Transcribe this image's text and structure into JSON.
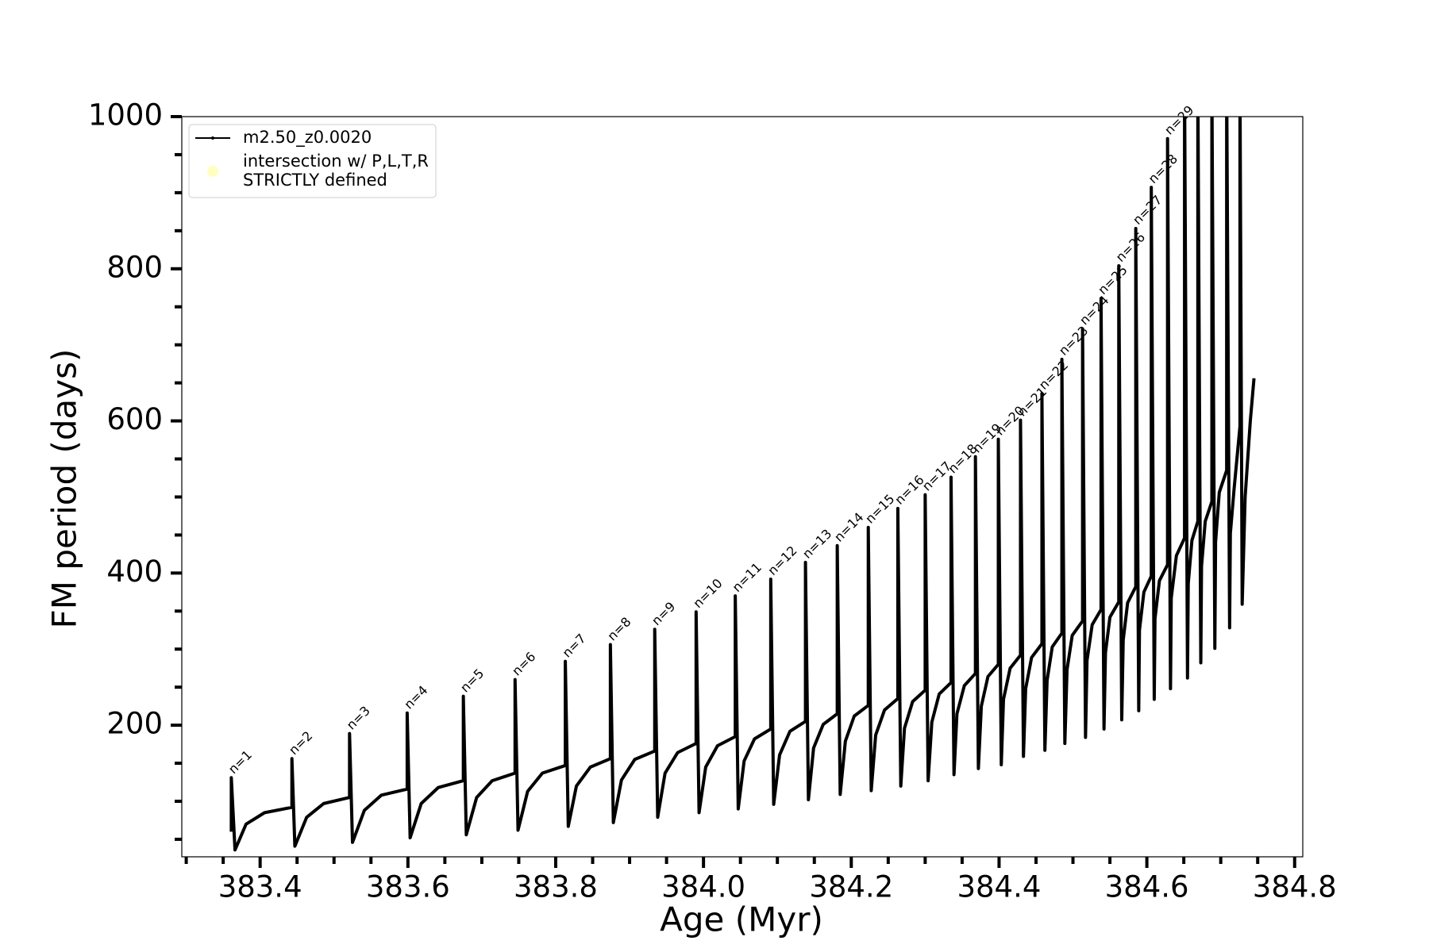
{
  "chart_data": {
    "type": "line",
    "xlabel": "Age (Myr)",
    "ylabel": "FM period (days)",
    "xlim": [
      383.294,
      384.811
    ],
    "ylim": [
      27,
      1000
    ],
    "xticks": [
      383.4,
      383.6,
      383.8,
      {
        "value": 384,
        "label": "384.0"
      },
      384.2,
      384.4,
      384.6,
      384.8
    ],
    "yticks": [
      200,
      400,
      600,
      800,
      1000
    ],
    "xminorticks": [
      383.3,
      383.35,
      383.45,
      383.5,
      383.55,
      383.65,
      383.7,
      383.75,
      383.85,
      383.9,
      383.95,
      384.05,
      384.1,
      384.15,
      384.25,
      384.3,
      384.35,
      384.45,
      384.5,
      384.55,
      384.65,
      384.7,
      384.75
    ],
    "yminorticks": [
      50,
      100,
      150,
      250,
      300,
      350,
      450,
      500,
      550,
      650,
      700,
      750,
      850,
      900,
      950
    ],
    "grid": false,
    "legend": "upper left",
    "series": [
      {
        "name": "m2.50_z0.0020",
        "color": "#000000",
        "x": [
          383.361,
          383.361,
          383.366,
          383.381,
          383.406,
          383.443,
          383.443,
          383.447,
          383.463,
          383.486,
          383.521,
          383.521,
          383.525,
          383.541,
          383.564,
          383.599,
          383.599,
          383.603,
          383.618,
          383.641,
          383.675,
          383.675,
          383.679,
          383.693,
          383.714,
          383.745,
          383.745,
          383.749,
          383.762,
          383.782,
          383.813,
          383.813,
          383.817,
          383.828,
          383.847,
          383.874,
          383.874,
          383.878,
          383.889,
          383.907,
          383.934,
          383.934,
          383.938,
          383.948,
          383.965,
          383.99,
          383.99,
          383.994,
          384.003,
          384.019,
          384.043,
          384.043,
          384.047,
          384.055,
          384.069,
          384.091,
          384.091,
          384.095,
          384.103,
          384.117,
          384.138,
          384.138,
          384.142,
          384.149,
          384.162,
          384.181,
          384.181,
          384.185,
          384.192,
          384.204,
          384.223,
          384.223,
          384.227,
          384.233,
          384.245,
          384.263,
          384.263,
          384.267,
          384.272,
          384.283,
          384.3,
          384.3,
          384.304,
          384.309,
          384.319,
          384.335,
          384.335,
          384.339,
          384.343,
          384.353,
          384.368,
          384.368,
          384.372,
          384.376,
          384.385,
          384.399,
          384.399,
          384.403,
          384.406,
          384.415,
          384.429,
          384.429,
          384.433,
          384.436,
          384.444,
          384.458,
          384.458,
          384.462,
          384.465,
          384.472,
          384.485,
          384.485,
          384.489,
          384.492,
          384.499,
          384.513,
          384.513,
          384.517,
          384.519,
          384.526,
          384.538,
          384.538,
          384.542,
          384.544,
          384.55,
          384.562,
          384.562,
          384.566,
          384.568,
          384.574,
          384.585,
          384.585,
          384.589,
          384.59,
          384.596,
          384.606,
          384.606,
          384.61,
          384.611,
          384.617,
          384.628,
          384.628,
          384.632,
          384.633,
          384.64,
          384.651,
          384.651,
          384.655,
          384.656,
          384.661,
          384.669,
          384.669,
          384.673,
          384.674,
          384.679,
          384.688,
          384.688,
          384.692,
          384.693,
          384.698,
          384.708,
          384.708,
          384.712,
          384.713,
          384.718,
          384.726,
          384.726,
          384.729,
          384.733,
          384.74,
          384.745
        ],
        "values": [
          60,
          131,
          36,
          70,
          85,
          92,
          156,
          41,
          79,
          97,
          105,
          189,
          46,
          88,
          108,
          116,
          216,
          52,
          97,
          118,
          127,
          238,
          56,
          105,
          127,
          137,
          260,
          62,
          113,
          137,
          147,
          284,
          67,
          120,
          145,
          156,
          306,
          72,
          128,
          155,
          166,
          326,
          79,
          137,
          164,
          176,
          349,
          85,
          145,
          173,
          185,
          370,
          90,
          153,
          182,
          195,
          392,
          96,
          161,
          192,
          205,
          414,
          102,
          170,
          201,
          215,
          436,
          109,
          179,
          212,
          226,
          460,
          114,
          187,
          220,
          235,
          485,
          120,
          196,
          231,
          246,
          503,
          127,
          204,
          241,
          256,
          526,
          135,
          215,
          252,
          268,
          553,
          143,
          225,
          264,
          280,
          576,
          148,
          234,
          275,
          292,
          601,
          159,
          248,
          289,
          307,
          636,
          167,
          259,
          303,
          321,
          681,
          176,
          273,
          318,
          337,
          721,
          184,
          285,
          332,
          352,
          761,
          195,
          295,
          342,
          362,
          804,
          207,
          312,
          361,
          382,
          853,
          219,
          325,
          375,
          396,
          907,
          234,
          340,
          390,
          411,
          971,
          248,
          367,
          423,
          446,
          1050,
          262,
          386,
          443,
          468,
          1050,
          282,
          409,
          468,
          494,
          1050,
          301,
          441,
          506,
          535,
          1050,
          328,
          452,
          510,
          593,
          1050,
          359,
          500,
          600,
          656
        ]
      },
      {
        "name": [
          "intersection w/ P,L,T,R",
          "STRICTLY defined"
        ],
        "color": "#ffffc0",
        "x": [],
        "values": []
      }
    ],
    "annotations": [
      {
        "text": "n=1",
        "x": 383.361,
        "y": 131
      },
      {
        "text": "n=2",
        "x": 383.443,
        "y": 156
      },
      {
        "text": "n=3",
        "x": 383.521,
        "y": 189
      },
      {
        "text": "n=4",
        "x": 383.599,
        "y": 216
      },
      {
        "text": "n=5",
        "x": 383.675,
        "y": 238
      },
      {
        "text": "n=6",
        "x": 383.745,
        "y": 260
      },
      {
        "text": "n=7",
        "x": 383.813,
        "y": 284
      },
      {
        "text": "n=8",
        "x": 383.874,
        "y": 306
      },
      {
        "text": "n=9",
        "x": 383.934,
        "y": 326
      },
      {
        "text": "n=10",
        "x": 383.99,
        "y": 349
      },
      {
        "text": "n=11",
        "x": 384.043,
        "y": 370
      },
      {
        "text": "n=12",
        "x": 384.091,
        "y": 392
      },
      {
        "text": "n=13",
        "x": 384.138,
        "y": 414
      },
      {
        "text": "n=14",
        "x": 384.181,
        "y": 436
      },
      {
        "text": "n=15",
        "x": 384.223,
        "y": 460
      },
      {
        "text": "n=16",
        "x": 384.263,
        "y": 485
      },
      {
        "text": "n=17",
        "x": 384.3,
        "y": 503
      },
      {
        "text": "n=18",
        "x": 384.335,
        "y": 526
      },
      {
        "text": "n=19",
        "x": 384.368,
        "y": 553
      },
      {
        "text": "n=20",
        "x": 384.399,
        "y": 576
      },
      {
        "text": "n=21",
        "x": 384.429,
        "y": 601
      },
      {
        "text": "n=22",
        "x": 384.458,
        "y": 636
      },
      {
        "text": "n=23",
        "x": 384.485,
        "y": 681
      },
      {
        "text": "n=24",
        "x": 384.513,
        "y": 721
      },
      {
        "text": "n=25",
        "x": 384.538,
        "y": 761
      },
      {
        "text": "n=26",
        "x": 384.562,
        "y": 804
      },
      {
        "text": "n=27",
        "x": 384.585,
        "y": 853
      },
      {
        "text": "n=28",
        "x": 384.606,
        "y": 907
      },
      {
        "text": "n=29",
        "x": 384.628,
        "y": 971
      }
    ]
  }
}
